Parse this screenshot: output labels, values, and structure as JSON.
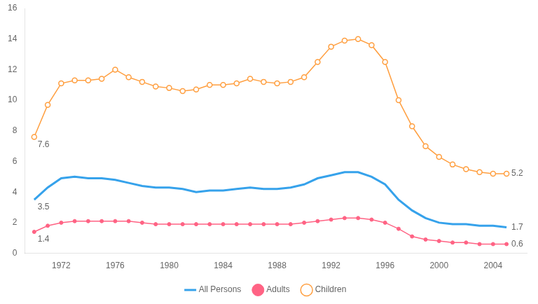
{
  "chart_data": {
    "type": "line",
    "x": [
      1970,
      1971,
      1972,
      1973,
      1974,
      1975,
      1976,
      1977,
      1978,
      1979,
      1980,
      1981,
      1982,
      1983,
      1984,
      1985,
      1986,
      1987,
      1988,
      1989,
      1990,
      1991,
      1992,
      1993,
      1994,
      1995,
      1996,
      1997,
      1998,
      1999,
      2000,
      2001,
      2002,
      2003,
      2004,
      2005
    ],
    "series": [
      {
        "name": "All Persons",
        "marker": "none",
        "line_style": "solid",
        "values": [
          3.5,
          4.3,
          4.9,
          5.0,
          4.9,
          4.9,
          4.8,
          4.6,
          4.4,
          4.3,
          4.3,
          4.2,
          4.0,
          4.1,
          4.1,
          4.2,
          4.3,
          4.2,
          4.2,
          4.3,
          4.5,
          4.9,
          5.1,
          5.3,
          5.3,
          5.0,
          4.5,
          3.5,
          2.8,
          2.3,
          2.0,
          1.9,
          1.9,
          1.8,
          1.8,
          1.7
        ]
      },
      {
        "name": "Adults",
        "marker": "circle",
        "line_style": "solid",
        "values": [
          1.4,
          1.8,
          2.0,
          2.1,
          2.1,
          2.1,
          2.1,
          2.1,
          2.0,
          1.9,
          1.9,
          1.9,
          1.9,
          1.9,
          1.9,
          1.9,
          1.9,
          1.9,
          1.9,
          1.9,
          2.0,
          2.1,
          2.2,
          2.3,
          2.3,
          2.2,
          2.0,
          1.6,
          1.1,
          0.9,
          0.8,
          0.7,
          0.7,
          0.6,
          0.6,
          0.6
        ]
      },
      {
        "name": "Children",
        "marker": "open circle",
        "line_style": "solid",
        "values": [
          7.6,
          9.7,
          11.1,
          11.3,
          11.3,
          11.4,
          12.0,
          11.5,
          11.2,
          10.9,
          10.8,
          10.6,
          10.7,
          11.0,
          11.0,
          11.1,
          11.4,
          11.2,
          11.1,
          11.2,
          11.5,
          12.5,
          13.5,
          13.9,
          14.0,
          13.6,
          12.5,
          10.0,
          8.3,
          7.0,
          6.3,
          5.8,
          5.5,
          5.3,
          5.2,
          5.2
        ]
      }
    ],
    "xlim": [
      1969.3,
      2006.5
    ],
    "xticks": [
      1972,
      1976,
      1980,
      1984,
      1988,
      1992,
      1996,
      2000,
      2004
    ],
    "ylim": [
      0,
      16
    ],
    "yticks": [
      0,
      2,
      4,
      6,
      8,
      10,
      12,
      14,
      16
    ],
    "grid": false,
    "legend": "bottom",
    "annotations": [
      {
        "text": "7.6",
        "x": 1970,
        "y": 7.6
      },
      {
        "text": "3.5",
        "x": 1970,
        "y": 3.5
      },
      {
        "text": "1.4",
        "x": 1970,
        "y": 1.4
      },
      {
        "text": "1.7",
        "x": 2005,
        "y": 1.7
      },
      {
        "text": "0.6",
        "x": 2005,
        "y": 0.6
      },
      {
        "text": "5.2",
        "x": 2005,
        "y": 5.2
      }
    ]
  }
}
